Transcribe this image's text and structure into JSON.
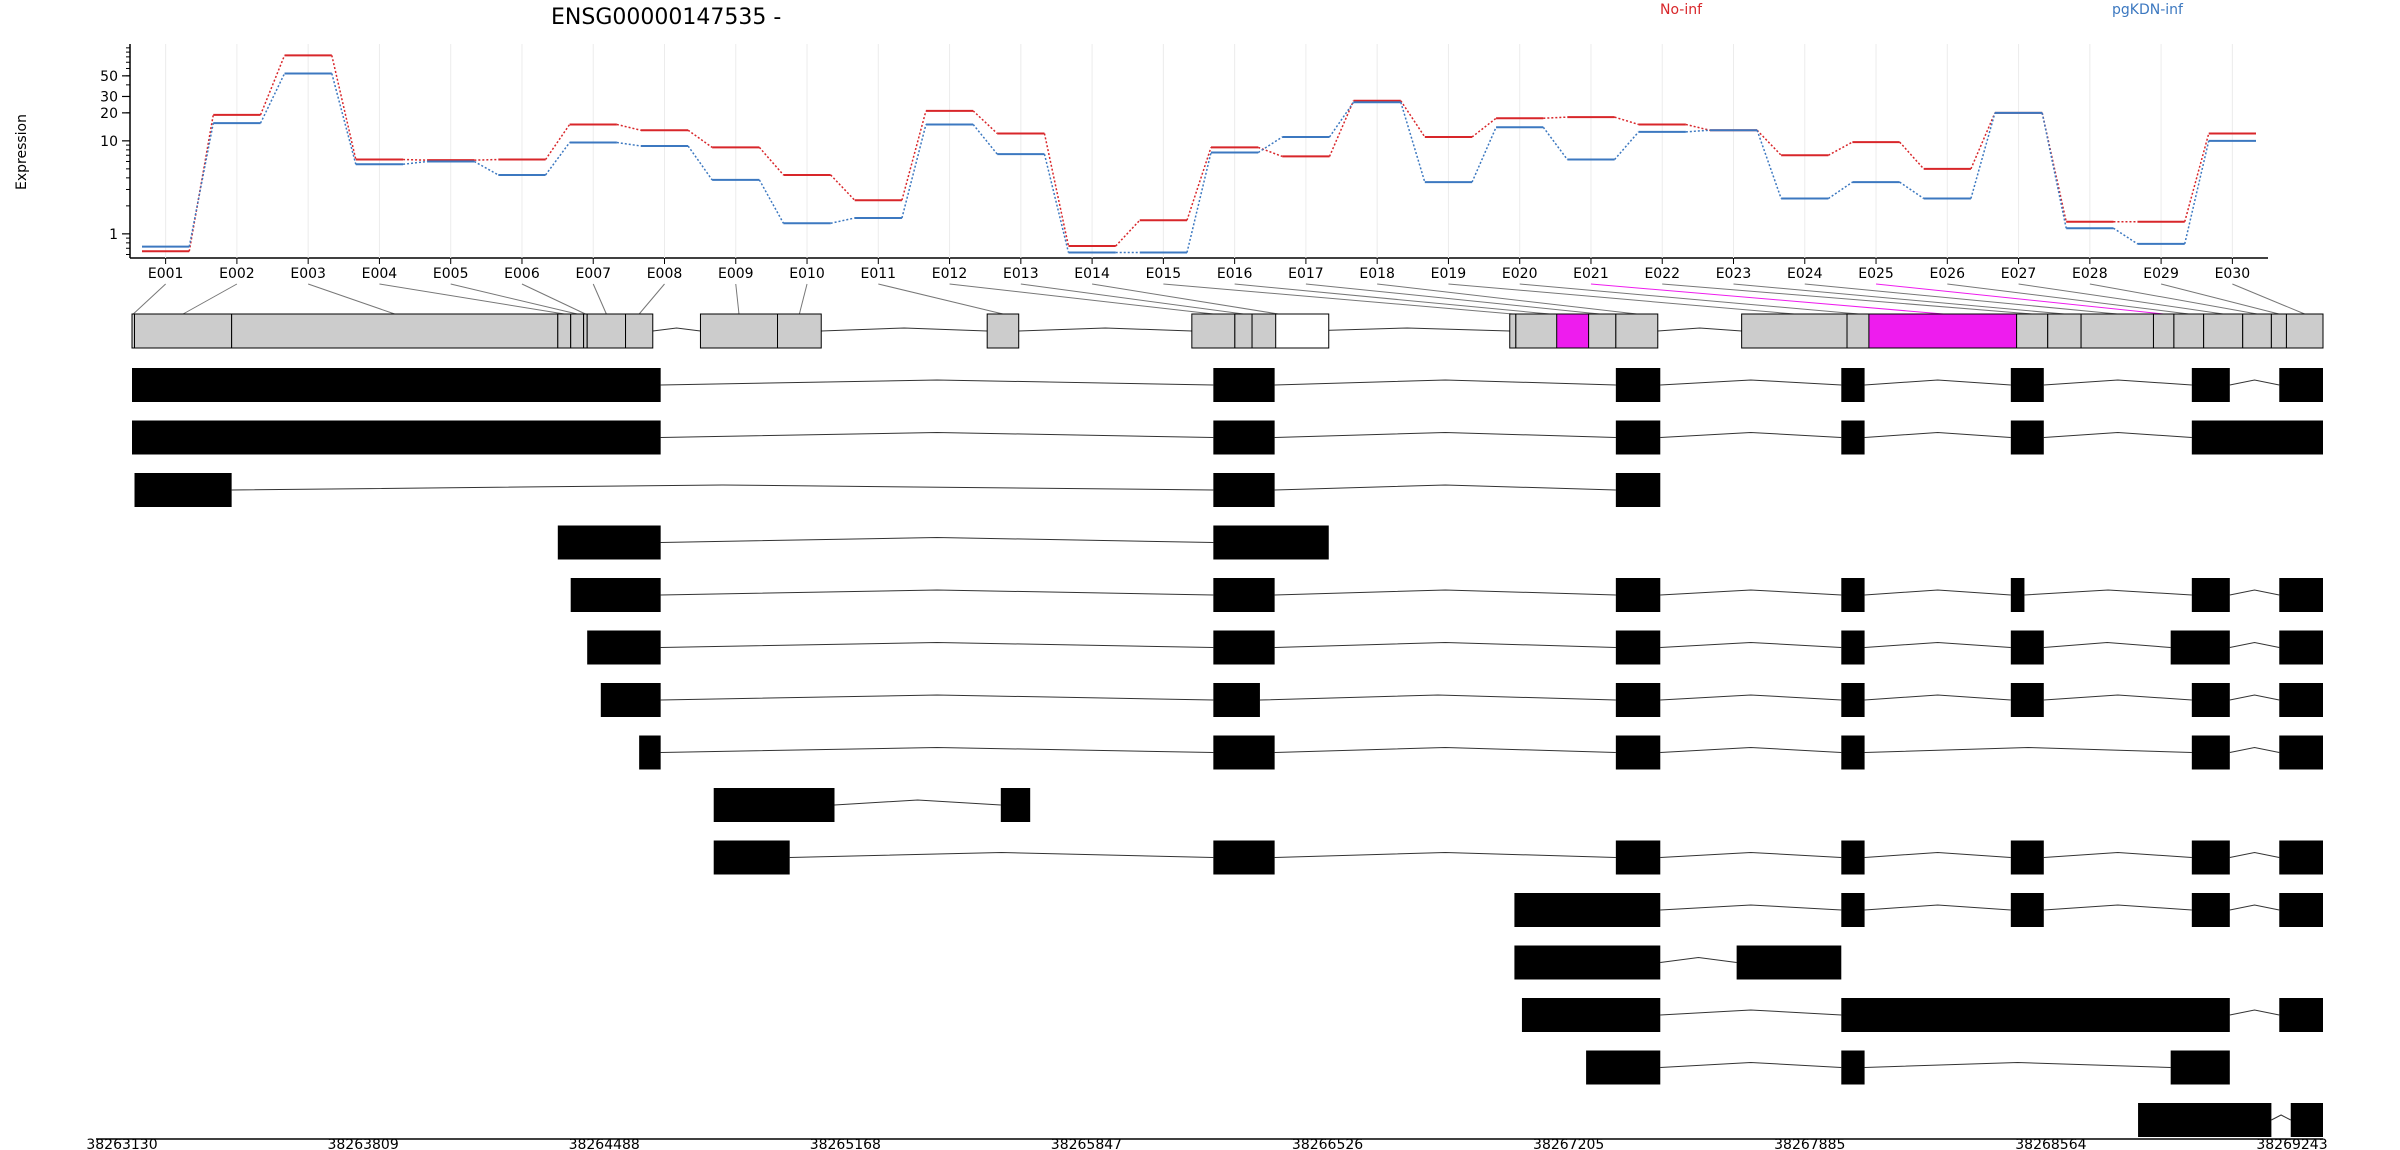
{
  "chart_data": {
    "type": "line",
    "title": "ENSG00000147535 -",
    "ylabel": "Expression",
    "yscale": "log",
    "ylim": [
      0.55,
      110
    ],
    "yticks": [
      1,
      10,
      20,
      30,
      50
    ],
    "series_colors": {
      "no_inf": "#d8262a",
      "pgkdn_inf": "#3c78c0",
      "highlight": "#ee1cee",
      "exon_gray": "#cccccc"
    },
    "legend": [
      {
        "name": "No-inf",
        "color": "#d8262a"
      },
      {
        "name": "pgKDN-inf",
        "color": "#3c78c0"
      }
    ],
    "legend_position": "top",
    "categories": [
      "E001",
      "E002",
      "E003",
      "E004",
      "E005",
      "E006",
      "E007",
      "E008",
      "E009",
      "E010",
      "E011",
      "E012",
      "E013",
      "E014",
      "E015",
      "E016",
      "E017",
      "E018",
      "E019",
      "E020",
      "E021",
      "E022",
      "E023",
      "E024",
      "E025",
      "E026",
      "E027",
      "E028",
      "E029",
      "E030"
    ],
    "series": [
      {
        "name": "No-inf",
        "values": [
          0.65,
          19,
          83,
          6.3,
          6.2,
          6.3,
          15,
          13,
          8.5,
          4.3,
          2.3,
          21,
          12,
          0.74,
          1.4,
          8.5,
          6.8,
          27,
          11,
          17.5,
          18,
          15,
          13,
          7,
          9.7,
          5,
          20,
          1.35,
          1.35,
          12
        ]
      },
      {
        "name": "pgKDN-inf",
        "values": [
          0.73,
          15.5,
          53,
          5.6,
          6,
          4.3,
          9.6,
          8.8,
          3.8,
          1.3,
          1.48,
          15,
          7.2,
          0.63,
          0.63,
          7.5,
          11,
          26,
          3.6,
          14,
          6.3,
          12.5,
          13,
          2.4,
          3.6,
          2.4,
          20,
          1.15,
          0.78,
          10
        ]
      }
    ],
    "exon_label_x": [
      "E001",
      "E002",
      "E003",
      "E004",
      "E005",
      "E006",
      "E007",
      "E008",
      "E009",
      "E010",
      "E011",
      "E012",
      "E013",
      "E014",
      "E015",
      "E016",
      "E017",
      "E018",
      "E019",
      "E020",
      "E021",
      "E022",
      "E023",
      "E024",
      "E025",
      "E026",
      "E027",
      "E028",
      "E029",
      "E030"
    ],
    "highlighted_exons": [
      "E021",
      "E025"
    ],
    "xlim": [
      38263130,
      38269243
    ],
    "coordinate_ticks": [
      "38263130",
      "38263809",
      "38264488",
      "38265168",
      "38265847",
      "38266526",
      "38267205",
      "38267885",
      "38268564",
      "38269243"
    ],
    "exon_model": [
      {
        "id": "E001",
        "start": 38263130,
        "end": 38263137
      },
      {
        "id": "E002",
        "start": 38263137,
        "end": 38263408
      },
      {
        "id": "E003",
        "start": 38263408,
        "end": 38264318
      },
      {
        "id": "E004",
        "start": 38264318,
        "end": 38264354
      },
      {
        "id": "E005",
        "start": 38264354,
        "end": 38264390
      },
      {
        "id": "E006",
        "start": 38264390,
        "end": 38264400
      },
      {
        "id": "E007",
        "start": 38264400,
        "end": 38264507
      },
      {
        "id": "E008",
        "start": 38264507,
        "end": 38264583
      },
      {
        "id": "E009",
        "start": 38264716,
        "end": 38264931
      },
      {
        "id": "E010",
        "start": 38264931,
        "end": 38265053
      },
      {
        "id": "E011",
        "start": 38265516,
        "end": 38265604
      },
      {
        "id": "E012",
        "start": 38266087,
        "end": 38266207
      },
      {
        "id": "E013",
        "start": 38266207,
        "end": 38266255
      },
      {
        "id": "E014",
        "start": 38266255,
        "end": 38266402
      },
      {
        "id": "E015",
        "start": 38266974,
        "end": 38266991
      },
      {
        "id": "E016",
        "start": 38266991,
        "end": 38267179
      },
      {
        "id": "E017",
        "start": 38267179,
        "end": 38267270
      },
      {
        "id": "E018",
        "start": 38267270,
        "end": 38267387
      },
      {
        "id": "E019",
        "start": 38267621,
        "end": 38267915
      },
      {
        "id": "E020",
        "start": 38267915,
        "end": 38267980
      },
      {
        "id": "E021",
        "start": 38267980,
        "end": 38268388
      },
      {
        "id": "E022",
        "start": 38268388,
        "end": 38268475
      },
      {
        "id": "E023",
        "start": 38268475,
        "end": 38268568
      },
      {
        "id": "E024",
        "start": 38268568,
        "end": 38268770
      },
      {
        "id": "E025",
        "start": 38268770,
        "end": 38268827
      },
      {
        "id": "E026",
        "start": 38268827,
        "end": 38268910
      },
      {
        "id": "E027",
        "start": 38268910,
        "end": 38269019
      },
      {
        "id": "E028",
        "start": 38269019,
        "end": 38269099
      },
      {
        "id": "E029",
        "start": 38269099,
        "end": 38269141
      },
      {
        "id": "E030",
        "start": 38269141,
        "end": 38269243
      }
    ],
    "highlight_blocks": [
      {
        "start": 38267105,
        "end": 38267194
      },
      {
        "start": 38267976,
        "end": 38268388
      }
    ],
    "white_block": {
      "start": 38266321,
      "end": 38266469
    },
    "transcripts": [
      [
        [
          38263130,
          38264605
        ],
        [
          38266147,
          38266318
        ],
        [
          38267270,
          38267394
        ],
        [
          38267899,
          38267964
        ],
        [
          38268372,
          38268464
        ],
        [
          38268877,
          38268983
        ],
        [
          38269121,
          38269243
        ]
      ],
      [
        [
          38263130,
          38264605
        ],
        [
          38266147,
          38266318
        ],
        [
          38267270,
          38267394
        ],
        [
          38267899,
          38267964
        ],
        [
          38268372,
          38268464
        ],
        [
          38268877,
          38269243
        ]
      ],
      [
        [
          38263137,
          38263408
        ],
        [
          38266147,
          38266318
        ],
        [
          38267270,
          38267394
        ]
      ],
      [
        [
          38264318,
          38264605
        ],
        [
          38266147,
          38266469
        ]
      ],
      [
        [
          38264354,
          38264605
        ],
        [
          38266147,
          38266318
        ],
        [
          38267270,
          38267394
        ],
        [
          38267899,
          38267964
        ],
        [
          38268372,
          38268410
        ],
        [
          38268877,
          38268983
        ],
        [
          38269121,
          38269243
        ]
      ],
      [
        [
          38264400,
          38264605
        ],
        [
          38266147,
          38266318
        ],
        [
          38267270,
          38267394
        ],
        [
          38267899,
          38267964
        ],
        [
          38268372,
          38268464
        ],
        [
          38268818,
          38268983
        ],
        [
          38269121,
          38269243
        ]
      ],
      [
        [
          38264438,
          38264605
        ],
        [
          38266147,
          38266277
        ],
        [
          38267270,
          38267394
        ],
        [
          38267899,
          38267964
        ],
        [
          38268372,
          38268464
        ],
        [
          38268877,
          38268983
        ],
        [
          38269121,
          38269243
        ]
      ],
      [
        [
          38264545,
          38264605
        ],
        [
          38266147,
          38266318
        ],
        [
          38267270,
          38267394
        ],
        [
          38267899,
          38267964
        ],
        [
          38268877,
          38268983
        ],
        [
          38269121,
          38269243
        ]
      ],
      [
        [
          38264753,
          38265090
        ],
        [
          38265554,
          38265636
        ]
      ],
      [
        [
          38264753,
          38264965
        ],
        [
          38266147,
          38266318
        ],
        [
          38267270,
          38267394
        ],
        [
          38267899,
          38267964
        ],
        [
          38268372,
          38268464
        ],
        [
          38268877,
          38268983
        ],
        [
          38269121,
          38269243
        ]
      ],
      [
        [
          38266987,
          38267394
        ],
        [
          38267899,
          38267964
        ],
        [
          38268372,
          38268464
        ],
        [
          38268877,
          38268983
        ],
        [
          38269121,
          38269243
        ]
      ],
      [
        [
          38266987,
          38267394
        ],
        [
          38267607,
          38267899
        ]
      ],
      [
        [
          38267008,
          38267394
        ],
        [
          38267899,
          38268983
        ],
        [
          38269121,
          38269243
        ]
      ],
      [
        [
          38267187,
          38267394
        ],
        [
          38267899,
          38267964
        ],
        [
          38268818,
          38268983
        ]
      ],
      [
        [
          38268727,
          38269099
        ],
        [
          38269153,
          38269243
        ]
      ]
    ]
  }
}
